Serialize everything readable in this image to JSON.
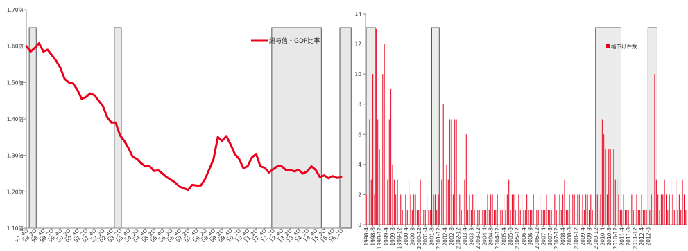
{
  "chart_data": [
    {
      "type": "line",
      "series": [
        {
          "name": "総与信・GDP比率",
          "values": [
            1.6,
            1.585,
            1.595,
            1.608,
            1.585,
            1.59,
            1.575,
            1.56,
            1.54,
            1.51,
            1.5,
            1.497,
            1.48,
            1.455,
            1.46,
            1.47,
            1.465,
            1.45,
            1.435,
            1.405,
            1.39,
            1.39,
            1.355,
            1.34,
            1.32,
            1.296,
            1.29,
            1.278,
            1.27,
            1.27,
            1.257,
            1.259,
            1.25,
            1.24,
            1.233,
            1.225,
            1.214,
            1.21,
            1.205,
            1.219,
            1.217,
            1.217,
            1.235,
            1.262,
            1.29,
            1.35,
            1.34,
            1.353,
            1.33,
            1.304,
            1.29,
            1.265,
            1.27,
            1.294,
            1.304,
            1.27,
            1.266,
            1.253,
            1.262,
            1.27,
            1.27,
            1.26,
            1.26,
            1.256,
            1.26,
            1.25,
            1.256,
            1.27,
            1.26,
            1.24,
            1.245,
            1.237,
            1.243,
            1.238,
            1.24
          ]
        }
      ],
      "ylim": [
        1.1,
        1.7
      ],
      "yticks": [
        "1.10倍",
        "1.20倍",
        "1.30倍",
        "1.40倍",
        "1.50倍",
        "1.60倍",
        "1.70倍"
      ],
      "xticks": [
        "97_4Q",
        "98_2Q",
        "98_4Q",
        "99_2Q",
        "99_4Q",
        "00_2Q",
        "00_4Q",
        "01_2Q",
        "01_4Q",
        "02_2Q",
        "02_4Q",
        "03_2Q",
        "03_4Q",
        "04_2Q",
        "04_4Q",
        "05_2Q",
        "05_4Q",
        "06_2Q",
        "06_4Q",
        "07_2Q",
        "07_4Q",
        "08_2Q",
        "08_4Q",
        "09_2Q",
        "09_4Q",
        "10_2Q",
        "10_4Q",
        "11_2Q",
        "11_4Q",
        "12_2Q",
        "12_4Q",
        "13_2Q",
        "13_4Q",
        "14_2Q",
        "14_4Q",
        "15_2Q",
        "15_4Q",
        "16_2Q"
      ],
      "shaded_ranges": [
        [
          1,
          2
        ],
        [
          21,
          22
        ],
        [
          58,
          69
        ],
        [
          74,
          76
        ]
      ],
      "legend_position": "top-right",
      "series_color": "#e8001c"
    },
    {
      "type": "bar",
      "series": [
        {
          "name": "格下げ件数",
          "values": [
            2,
            5,
            7,
            3,
            10,
            2,
            13,
            7,
            5,
            4,
            10,
            12,
            8,
            3,
            7,
            9,
            4,
            3,
            2,
            3,
            1,
            2,
            1,
            1,
            2,
            1,
            3,
            2,
            1,
            2,
            2,
            1,
            1,
            3,
            4,
            1,
            1,
            2,
            1,
            1,
            1,
            2,
            2,
            1,
            2,
            3,
            3,
            8,
            3,
            4,
            3,
            7,
            7,
            2,
            7,
            7,
            2,
            2,
            1,
            2,
            3,
            6,
            1,
            2,
            1,
            2,
            1,
            2,
            1,
            1,
            2,
            1,
            1,
            1,
            2,
            1,
            2,
            2,
            1,
            1,
            2,
            1,
            1,
            1,
            2,
            1,
            2,
            3,
            1,
            2,
            2,
            1,
            2,
            2,
            1,
            2,
            1,
            1,
            2,
            1,
            1,
            1,
            2,
            1,
            1,
            1,
            2,
            1,
            1,
            1,
            2,
            1,
            1,
            1,
            1,
            2,
            1,
            1,
            2,
            1,
            2,
            3,
            1,
            1,
            2,
            1,
            2,
            2,
            1,
            2,
            2,
            1,
            2,
            1,
            2,
            2,
            1,
            2,
            1,
            1,
            2,
            2,
            1,
            2,
            7,
            6,
            5,
            2,
            5,
            5,
            4,
            5,
            3,
            3,
            2,
            1,
            1,
            2,
            1,
            1,
            1,
            1,
            2,
            1,
            1,
            2,
            1,
            1,
            2,
            1,
            1,
            1,
            2,
            1,
            2,
            1,
            10,
            3,
            2,
            1,
            2,
            2,
            3,
            2,
            1,
            2,
            3,
            2,
            1,
            3,
            1,
            2,
            1,
            3,
            2,
            1
          ]
        }
      ],
      "ylim": [
        0,
        14
      ],
      "yticks": [
        "0",
        "2",
        "4",
        "6",
        "8",
        "10",
        "12",
        "14"
      ],
      "xticks": [
        "1998-4",
        "1998-8",
        "1998-12",
        "1999-4",
        "1999-8",
        "1999-12",
        "2000-4",
        "2000-8",
        "2000-12",
        "2001-4",
        "2001-8",
        "2001-12",
        "2002-4",
        "2002-8",
        "2002-12",
        "2003-4",
        "2003-8",
        "2003-12",
        "2004-4",
        "2004-8",
        "2004-12",
        "2005-4",
        "2005-8",
        "2005-12",
        "2006-4",
        "2006-8",
        "2006-12",
        "2007-4",
        "2007-8",
        "2007-12",
        "2008-4",
        "2008-8",
        "2008-12",
        "2009-4",
        "2009-8",
        "2009-12",
        "2010-4",
        "2010-8",
        "2010-12",
        "2011-4",
        "2011-8",
        "2011-12",
        "2012-4",
        "2012-8"
      ],
      "shaded_ranges": [
        [
          0,
          5
        ],
        [
          40,
          44
        ],
        [
          140,
          155
        ],
        [
          172,
          177
        ]
      ],
      "legend_position": "center-right",
      "series_color": "#e8001c"
    }
  ]
}
